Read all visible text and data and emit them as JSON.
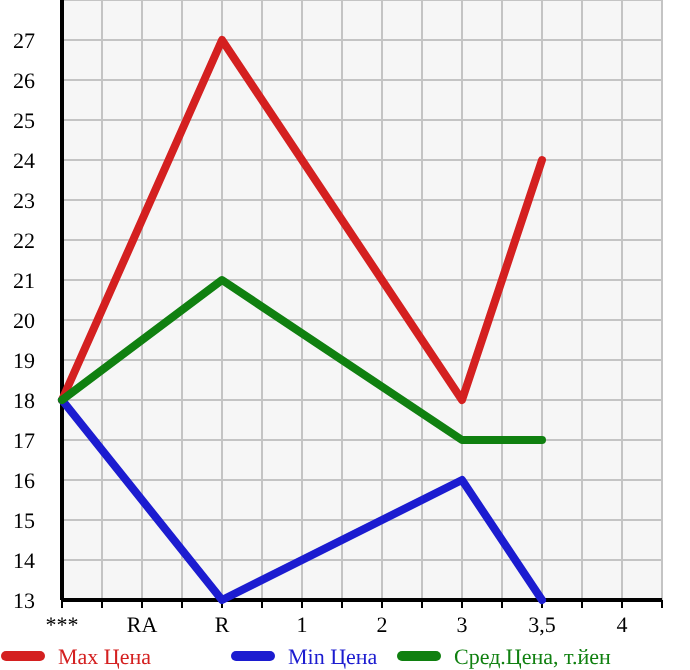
{
  "chart_data": {
    "type": "line",
    "categories": [
      "***",
      "RA",
      "R",
      "1",
      "2",
      "3",
      "3,5",
      "4"
    ],
    "series": [
      {
        "name": "Max Цена",
        "color": "#d42020",
        "values": [
          18,
          null,
          27,
          null,
          null,
          18,
          24,
          null
        ]
      },
      {
        "name": "Min Цена",
        "color": "#1c1cd0",
        "values": [
          18,
          null,
          13,
          null,
          null,
          16,
          13,
          null
        ]
      },
      {
        "name": "Сред.Цена, т.йен",
        "color": "#108010",
        "values": [
          18,
          null,
          21,
          null,
          null,
          17,
          17,
          null
        ]
      }
    ],
    "ylim": [
      13,
      28
    ],
    "yticks": [
      13,
      14,
      15,
      16,
      17,
      18,
      19,
      20,
      21,
      22,
      23,
      24,
      25,
      26,
      27
    ],
    "grid": true,
    "legend": "bottom",
    "marker": "none",
    "line_style": "solid"
  }
}
